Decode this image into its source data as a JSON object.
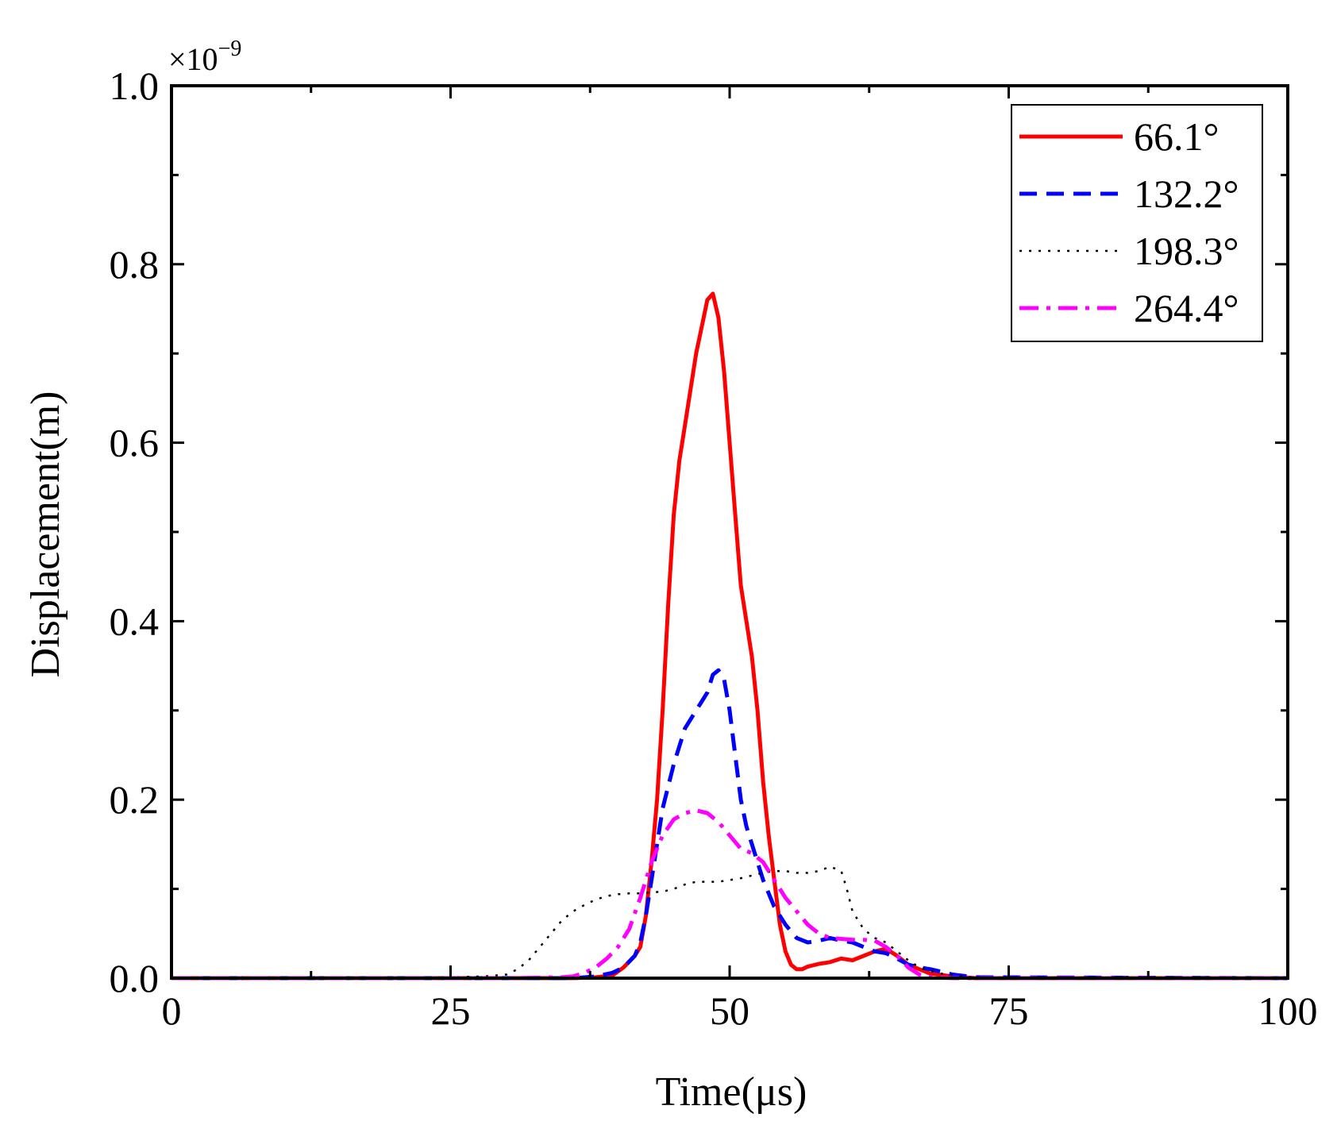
{
  "chart_data": {
    "type": "line",
    "title": "",
    "xlabel": "Time(μs)",
    "ylabel": "Displacement(m)",
    "xlim": [
      0,
      100
    ],
    "ylim": [
      0,
      1.0
    ],
    "xticks": [
      "0",
      "25",
      "50",
      "75",
      "100"
    ],
    "yticks": [
      "0.0",
      "0.2",
      "0.4",
      "0.6",
      "0.8",
      "1.0"
    ],
    "y_multiplier": {
      "base": "×10",
      "exponent": "−9"
    },
    "grid": false,
    "legend_position": "top-right",
    "series": [
      {
        "name": "66.1°",
        "color": "#ff0000",
        "style": "solid",
        "x": [
          0,
          36,
          38,
          39.5,
          40.5,
          41.5,
          42,
          42.5,
          43,
          43.5,
          44,
          44.5,
          45,
          45.5,
          46,
          46.5,
          47,
          47.5,
          48,
          48.5,
          49,
          49.5,
          50,
          50.5,
          51,
          51.5,
          52,
          52.5,
          53,
          53.5,
          54,
          54.5,
          55,
          55.5,
          56,
          56.5,
          57,
          58,
          59,
          60,
          61,
          62,
          63,
          64,
          65,
          66,
          67,
          68,
          70,
          72,
          100
        ],
        "y": [
          0,
          0,
          0.001,
          0.003,
          0.012,
          0.025,
          0.035,
          0.07,
          0.13,
          0.2,
          0.3,
          0.42,
          0.52,
          0.58,
          0.62,
          0.66,
          0.7,
          0.73,
          0.76,
          0.767,
          0.74,
          0.68,
          0.6,
          0.52,
          0.44,
          0.4,
          0.36,
          0.3,
          0.22,
          0.16,
          0.11,
          0.06,
          0.03,
          0.015,
          0.01,
          0.01,
          0.013,
          0.016,
          0.018,
          0.022,
          0.02,
          0.025,
          0.03,
          0.033,
          0.025,
          0.015,
          0.01,
          0.005,
          0.002,
          0,
          0
        ]
      },
      {
        "name": "132.2°",
        "color": "#0000ff",
        "style": "dashed",
        "x": [
          0,
          36,
          38,
          39.5,
          40.5,
          41.5,
          42,
          42.5,
          43,
          43.5,
          44,
          45,
          46,
          47,
          48,
          48.5,
          49,
          49.5,
          50,
          50.5,
          51,
          51.5,
          52,
          52.5,
          53,
          53.5,
          54,
          55,
          56,
          57,
          58,
          59,
          60,
          61,
          62,
          63,
          64,
          65,
          66,
          67,
          68,
          69,
          70,
          72,
          100
        ],
        "y": [
          0,
          0,
          0.002,
          0.006,
          0.012,
          0.025,
          0.04,
          0.07,
          0.11,
          0.15,
          0.19,
          0.24,
          0.28,
          0.3,
          0.32,
          0.34,
          0.345,
          0.335,
          0.3,
          0.25,
          0.2,
          0.17,
          0.15,
          0.13,
          0.11,
          0.095,
          0.08,
          0.06,
          0.045,
          0.04,
          0.042,
          0.045,
          0.042,
          0.04,
          0.035,
          0.03,
          0.028,
          0.022,
          0.015,
          0.012,
          0.01,
          0.007,
          0.004,
          0.001,
          0
        ]
      },
      {
        "name": "198.3°",
        "color": "#000000",
        "style": "dotted",
        "x": [
          0,
          20,
          25,
          28,
          30,
          31,
          32,
          33,
          34,
          35,
          36,
          37,
          38,
          39,
          40,
          41,
          42,
          43,
          44,
          45,
          46,
          47,
          48,
          49,
          50,
          51,
          52,
          53,
          54,
          55,
          56,
          57,
          58,
          59,
          60,
          60.5,
          61,
          62,
          63,
          64,
          65,
          66,
          67,
          68,
          69,
          70,
          71,
          72,
          100
        ],
        "y": [
          0,
          0,
          0.001,
          0.002,
          0.004,
          0.01,
          0.02,
          0.035,
          0.05,
          0.065,
          0.075,
          0.082,
          0.088,
          0.092,
          0.094,
          0.095,
          0.095,
          0.096,
          0.097,
          0.1,
          0.105,
          0.108,
          0.108,
          0.108,
          0.11,
          0.112,
          0.115,
          0.118,
          0.12,
          0.12,
          0.118,
          0.118,
          0.12,
          0.125,
          0.12,
          0.1,
          0.075,
          0.055,
          0.045,
          0.04,
          0.03,
          0.02,
          0.012,
          0.008,
          0.005,
          0.003,
          0.002,
          0.001,
          0
        ]
      },
      {
        "name": "264.4°",
        "color": "#ff00ff",
        "style": "dashdot",
        "x": [
          0,
          30,
          35,
          36,
          37,
          38,
          39,
          40,
          41,
          42,
          43,
          44,
          45,
          46,
          47,
          48,
          49,
          50,
          51,
          52,
          53,
          54,
          55,
          56,
          57,
          58,
          59,
          60,
          61,
          62,
          63,
          64,
          65,
          66,
          67,
          68,
          70,
          100
        ],
        "y": [
          0,
          0,
          0.001,
          0.002,
          0.006,
          0.012,
          0.022,
          0.035,
          0.055,
          0.09,
          0.13,
          0.16,
          0.178,
          0.185,
          0.188,
          0.185,
          0.175,
          0.16,
          0.145,
          0.14,
          0.13,
          0.11,
          0.09,
          0.075,
          0.06,
          0.05,
          0.045,
          0.044,
          0.043,
          0.043,
          0.042,
          0.035,
          0.025,
          0.012,
          0.004,
          0.001,
          0,
          0
        ]
      }
    ]
  }
}
